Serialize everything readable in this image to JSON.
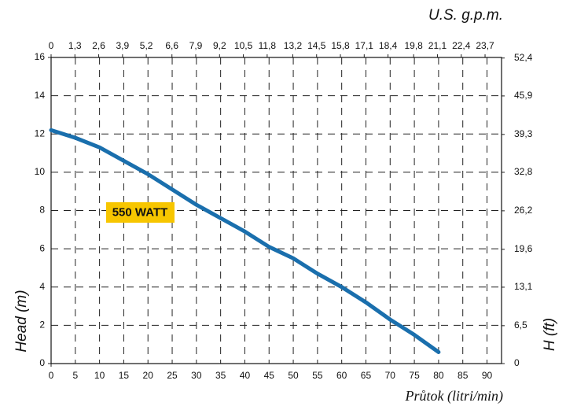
{
  "chart_data": {
    "type": "line",
    "annotation": "550 WATT",
    "xlabel": "Průtok (litri/min)",
    "x2label": "U.S. g.p.m.",
    "ylabel": "Head (m)",
    "y2label": "H (ft)",
    "x": [
      0,
      5,
      10,
      15,
      20,
      25,
      30,
      35,
      40,
      45,
      50,
      55,
      60,
      65,
      70,
      75,
      80
    ],
    "series": [
      {
        "name": "550 WATT",
        "color": "#1a6fad",
        "values": [
          12.2,
          11.8,
          11.3,
          10.6,
          9.9,
          9.1,
          8.3,
          7.6,
          6.9,
          6.1,
          5.5,
          4.7,
          4.0,
          3.2,
          2.3,
          1.5,
          0.6
        ]
      }
    ],
    "xlim": [
      0,
      93
    ],
    "xticks": [
      0,
      5,
      10,
      15,
      20,
      25,
      30,
      35,
      40,
      45,
      50,
      55,
      60,
      65,
      70,
      75,
      80,
      85,
      90
    ],
    "x2lim": [
      0,
      24.6
    ],
    "x2ticks": [
      0,
      {
        "value": 1.3,
        "label": "1,3"
      },
      {
        "value": 2.6,
        "label": "2,6"
      },
      {
        "value": 3.9,
        "label": "3,9"
      },
      {
        "value": 5.2,
        "label": "5,2"
      },
      {
        "value": 6.6,
        "label": "6,6"
      },
      {
        "value": 7.9,
        "label": "7,9"
      },
      {
        "value": 9.2,
        "label": "9,2"
      },
      {
        "value": 10.5,
        "label": "10,5"
      },
      {
        "value": 11.8,
        "label": "11,8"
      },
      {
        "value": 13.2,
        "label": "13,2"
      },
      {
        "value": 14.5,
        "label": "14,5"
      },
      {
        "value": 15.8,
        "label": "15,8"
      },
      {
        "value": 17.1,
        "label": "17,1"
      },
      {
        "value": 18.4,
        "label": "18,4"
      },
      {
        "value": 19.8,
        "label": "19,8"
      },
      {
        "value": 21.1,
        "label": "21,1"
      },
      {
        "value": 22.4,
        "label": "22,4"
      },
      {
        "value": 23.7,
        "label": "23,7"
      }
    ],
    "ylim": [
      0,
      16
    ],
    "yticks": [
      0,
      2,
      4,
      6,
      8,
      10,
      12,
      14,
      16
    ],
    "y2lim": [
      0,
      52.5
    ],
    "y2ticks": [
      0,
      {
        "value": 6.5,
        "label": "6,5"
      },
      {
        "value": 13.1,
        "label": "13,1"
      },
      {
        "value": 19.6,
        "label": "19,6"
      },
      {
        "value": 26.2,
        "label": "26,2"
      },
      {
        "value": 32.8,
        "label": "32,8"
      },
      {
        "value": 39.3,
        "label": "39,3"
      },
      {
        "value": 45.9,
        "label": "45,9"
      },
      {
        "value": 52.4,
        "label": "52,4"
      }
    ],
    "grid": true
  }
}
